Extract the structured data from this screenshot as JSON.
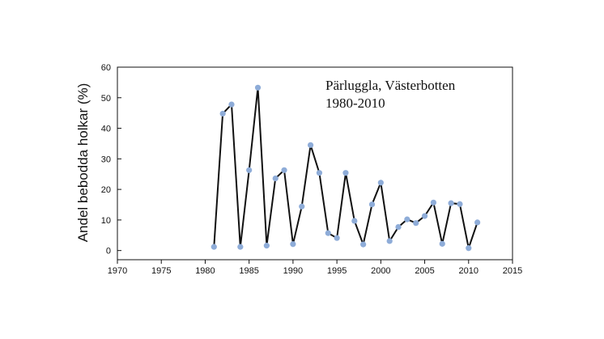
{
  "chart_data": {
    "type": "line",
    "title": "",
    "annotation": [
      "Pärluggla, Västerbotten",
      "1980-2010"
    ],
    "xlabel": "",
    "ylabel": "Andel bebodda holkar (%)",
    "xlim": [
      1970,
      2015
    ],
    "ylim": [
      -3,
      60
    ],
    "xticks": [
      1970,
      1975,
      1980,
      1985,
      1990,
      1995,
      2000,
      2005,
      2010,
      2015
    ],
    "yticks": [
      0,
      10,
      20,
      30,
      40,
      50,
      60
    ],
    "grid": false,
    "legend": "none",
    "line_color": "#111111",
    "marker_color": "#8eacd8",
    "x": [
      1981,
      1982,
      1983,
      1984,
      1985,
      1986,
      1987,
      1988,
      1989,
      1990,
      1991,
      1992,
      1993,
      1994,
      1995,
      1996,
      1997,
      1998,
      1999,
      2000,
      2001,
      2002,
      2003,
      2004,
      2005,
      2006,
      2007,
      2008,
      2009,
      2010,
      2011
    ],
    "y": [
      1.2,
      44.8,
      47.8,
      1.2,
      26.3,
      53.3,
      1.6,
      23.6,
      26.3,
      2.1,
      14.4,
      34.5,
      25.4,
      5.7,
      4.1,
      25.4,
      9.7,
      2.0,
      15.1,
      22.2,
      3.1,
      7.7,
      10.2,
      9.0,
      11.3,
      15.7,
      2.2,
      15.5,
      15.2,
      0.8,
      9.2
    ]
  }
}
